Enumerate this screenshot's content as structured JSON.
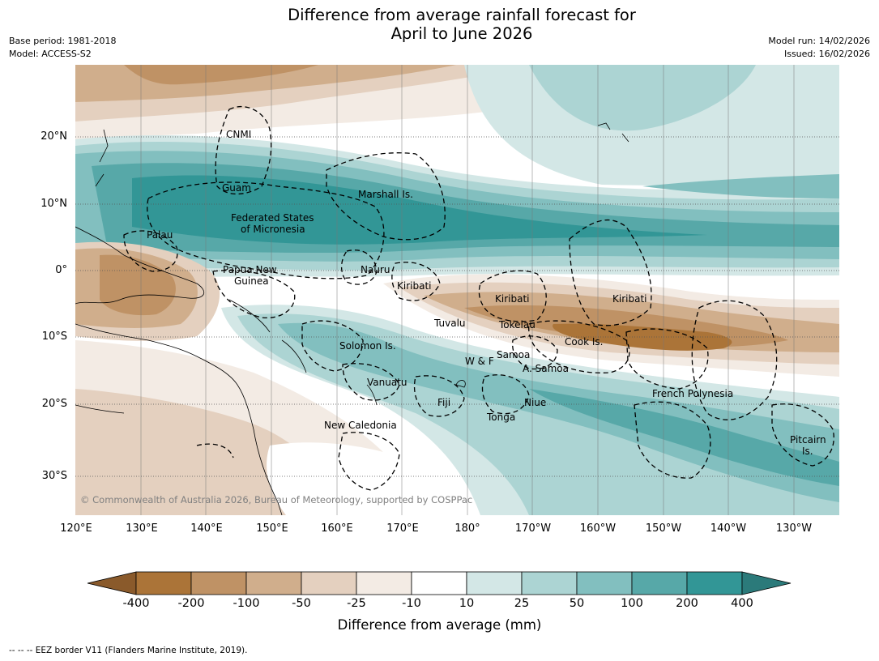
{
  "title_line1": "Difference from average rainfall forecast for",
  "title_line2": "April to June 2026",
  "meta": {
    "base_period": "Base period: 1981-2018",
    "model": "Model: ACCESS-S2",
    "model_run": "Model run: 14/02/2026",
    "issued": "Issued: 16/02/2026"
  },
  "map": {
    "lat_labels": [
      "20°N",
      "10°N",
      "0°",
      "10°S",
      "20°S",
      "30°S"
    ],
    "lon_labels": [
      "120°E",
      "130°E",
      "140°E",
      "150°E",
      "160°E",
      "170°E",
      "180°",
      "170°W",
      "160°W",
      "150°W",
      "140°W",
      "130°W"
    ],
    "regions": {
      "cnmi": "CNMI",
      "guam": "Guam",
      "marshall": "Marshall Is.",
      "fsm_1": "Federated States",
      "fsm_2": "of Micronesia",
      "palau": "Palau",
      "png_1": "Papua New",
      "png_2": "Guinea",
      "nauru": "Nauru",
      "kiribati_w": "Kiribati",
      "kiribati_c": "Kiribati",
      "kiribati_e": "Kiribati",
      "tuvalu": "Tuvalu",
      "tokelau": "Tokelau",
      "cook": "Cook Is.",
      "solomon": "Solomon Is.",
      "samoa": "Samoa",
      "wf": "W & F",
      "asamoa": "A. Samoa",
      "vanuatu": "Vanuatu",
      "french_polynesia": "French Polynesia",
      "fiji": "Fiji",
      "niue": "Niue",
      "tonga": "Tonga",
      "new_caledonia": "New Caledonia",
      "pitcairn_1": "Pitcairn",
      "pitcairn_2": "Is."
    },
    "copyright": "© Commonwealth of Australia 2026, Bureau of Meteorology, supported by COSPPac"
  },
  "colorbar": {
    "colors": [
      "#8a5a2b",
      "#ab7438",
      "#bf9265",
      "#d0ae8c",
      "#e4d0bf",
      "#f3ebe4",
      "#ffffff",
      "#d3e7e6",
      "#acd4d3",
      "#82bfbf",
      "#57a8a8",
      "#329696",
      "#2b7a7a"
    ],
    "ticks": [
      "-400",
      "-200",
      "-100",
      "-50",
      "-25",
      "-10",
      "10",
      "25",
      "50",
      "100",
      "200",
      "400"
    ],
    "label": "Difference from average (mm)"
  },
  "footnote": "--  --  -- EEZ border V11 (Flanders Marine Institute, 2019)."
}
